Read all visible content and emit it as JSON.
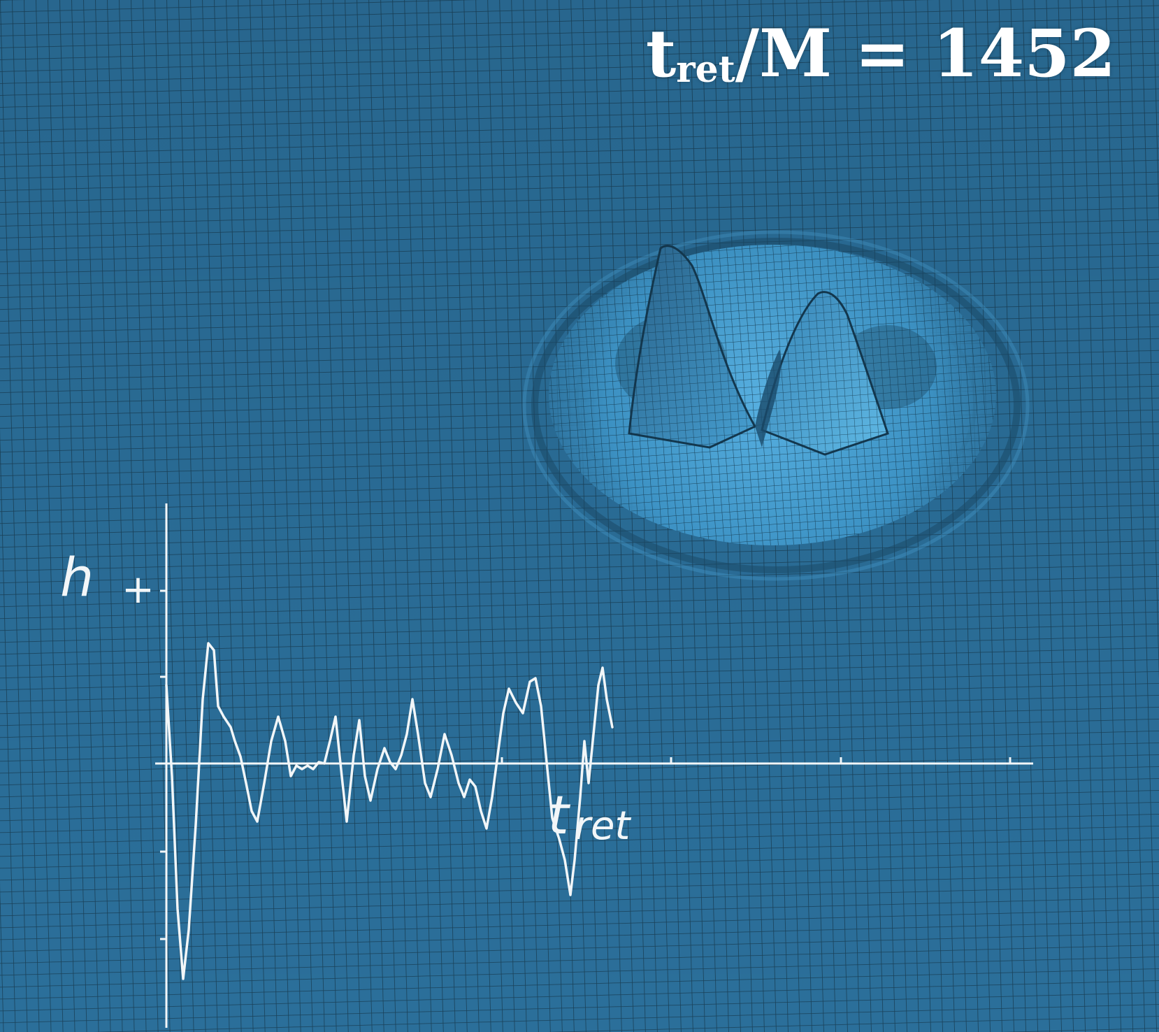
{
  "time_label": {
    "base": "t",
    "subscript": "ret",
    "slash": "/",
    "rest": "M = 1452"
  },
  "plot": {
    "y_label_main": "h",
    "y_label_sub": "+",
    "x_label_main": "t",
    "x_label_sub": "ret",
    "line_color": "#f2f6f8"
  },
  "surface": {
    "base_color": "#2b6f9a",
    "highlight_color": "#57b8ea",
    "grid_color": "#16384c"
  }
}
